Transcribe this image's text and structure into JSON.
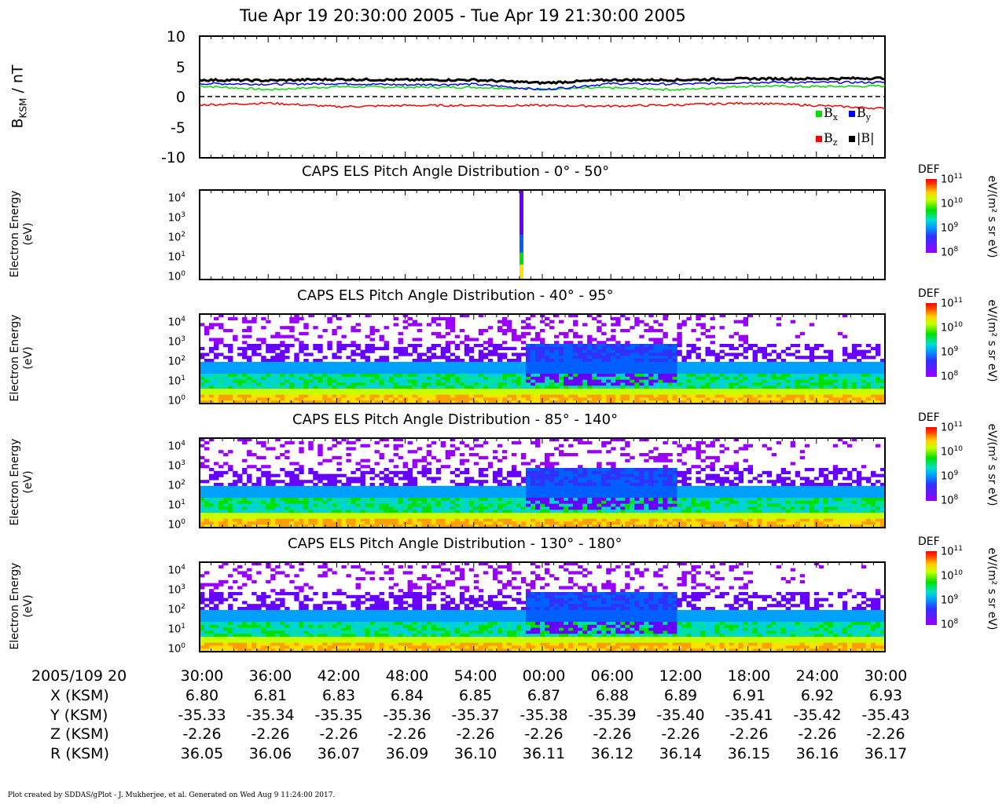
{
  "header": {
    "title": "Tue Apr 19 20:30:00 2005 - Tue Apr 19 21:30:00 2005"
  },
  "chart_data": [
    {
      "type": "line",
      "ylabel_main": "B",
      "ylabel_sub": "KSM",
      "ylabel_unit": " / nT",
      "ylim": [
        -10,
        10
      ],
      "yticks": [
        "10",
        "5",
        "0",
        "-5",
        "-10"
      ],
      "x": [
        "20:30",
        "20:36",
        "20:42",
        "20:48",
        "20:54",
        "21:00",
        "21:06",
        "21:12",
        "21:18",
        "21:24",
        "21:30"
      ],
      "series": [
        {
          "name": "x",
          "color": "#00dd00",
          "values": [
            1.8,
            1.2,
            1.7,
            1.6,
            1.6,
            1.3,
            1.5,
            1.2,
            1.8,
            1.7,
            1.8
          ]
        },
        {
          "name": "y",
          "color": "#0000ff",
          "values": [
            2.2,
            2.1,
            2.2,
            2.0,
            2.1,
            1.2,
            2.2,
            2.1,
            2.4,
            2.4,
            2.4
          ]
        },
        {
          "name": "z",
          "color": "#ff0000",
          "values": [
            -1.3,
            -1.0,
            -1.6,
            -1.4,
            -1.4,
            -1.4,
            -1.5,
            -1.3,
            -1.0,
            -1.4,
            -1.9
          ]
        },
        {
          "name": "|B|",
          "color": "#000000",
          "values": [
            2.8,
            2.7,
            2.9,
            2.8,
            2.8,
            2.3,
            2.8,
            2.8,
            3.0,
            3.0,
            3.1
          ]
        }
      ],
      "legend": [
        "B_x",
        "B_y",
        "B_z",
        "|B|"
      ]
    },
    {
      "type": "heatmap",
      "title": "CAPS ELS Pitch Angle Distribution - 0° - 50°",
      "ylabel": [
        "Electron Energy",
        "(eV)"
      ],
      "yticks": [
        "10",
        "10",
        "10",
        "10",
        "10"
      ],
      "ytick_exp": [
        "4",
        "3",
        "2",
        "1",
        "0"
      ],
      "colorbar": {
        "label": "DEF",
        "ticks_exp": [
          "11",
          "10",
          "9",
          "8"
        ],
        "unit": "eV/(m² s sr eV)"
      }
    },
    {
      "type": "heatmap",
      "title": "CAPS ELS Pitch Angle Distribution - 40° - 95°",
      "ylabel": [
        "Electron Energy",
        "(eV)"
      ],
      "colorbar": {
        "label": "DEF",
        "ticks_exp": [
          "11",
          "10",
          "9",
          "8"
        ],
        "unit": "eV/(m² s sr eV)"
      }
    },
    {
      "type": "heatmap",
      "title": "CAPS ELS Pitch Angle Distribution - 85° - 140°",
      "ylabel": [
        "Electron Energy",
        "(eV)"
      ],
      "colorbar": {
        "label": "DEF",
        "ticks_exp": [
          "11",
          "10",
          "9",
          "8"
        ],
        "unit": "eV/(m² s sr eV)"
      }
    },
    {
      "type": "heatmap",
      "title": "CAPS ELS Pitch Angle Distribution - 130° - 180°",
      "ylabel": [
        "Electron Energy",
        "(eV)"
      ],
      "colorbar": {
        "label": "DEF",
        "ticks_exp": [
          "11",
          "10",
          "9",
          "8"
        ],
        "unit": "eV/(m² s sr eV)"
      }
    }
  ],
  "ephemeris": {
    "date_label": "2005/109 20",
    "times": [
      "30:00",
      "36:00",
      "42:00",
      "48:00",
      "54:00",
      "00:00",
      "06:00",
      "12:00",
      "18:00",
      "24:00",
      "30:00"
    ],
    "rows": [
      {
        "label": "X (KSM)",
        "values": [
          "6.80",
          "6.81",
          "6.83",
          "6.84",
          "6.85",
          "6.87",
          "6.88",
          "6.89",
          "6.91",
          "6.92",
          "6.93"
        ]
      },
      {
        "label": "Y (KSM)",
        "values": [
          "-35.33",
          "-35.34",
          "-35.35",
          "-35.36",
          "-35.37",
          "-35.38",
          "-35.39",
          "-35.40",
          "-35.41",
          "-35.42",
          "-35.43"
        ]
      },
      {
        "label": "Z (KSM)",
        "values": [
          "-2.26",
          "-2.26",
          "-2.26",
          "-2.26",
          "-2.26",
          "-2.26",
          "-2.26",
          "-2.26",
          "-2.26",
          "-2.26",
          "-2.26"
        ]
      },
      {
        "label": "R (KSM)",
        "values": [
          "36.05",
          "36.06",
          "36.07",
          "36.09",
          "36.10",
          "36.11",
          "36.12",
          "36.14",
          "36.15",
          "36.16",
          "36.17"
        ]
      }
    ]
  },
  "footer": {
    "text": "Plot created by SDDAS/gPlot - J. Mukherjee, et al.  Generated on Wed Aug 9 11:24:00 2017."
  }
}
